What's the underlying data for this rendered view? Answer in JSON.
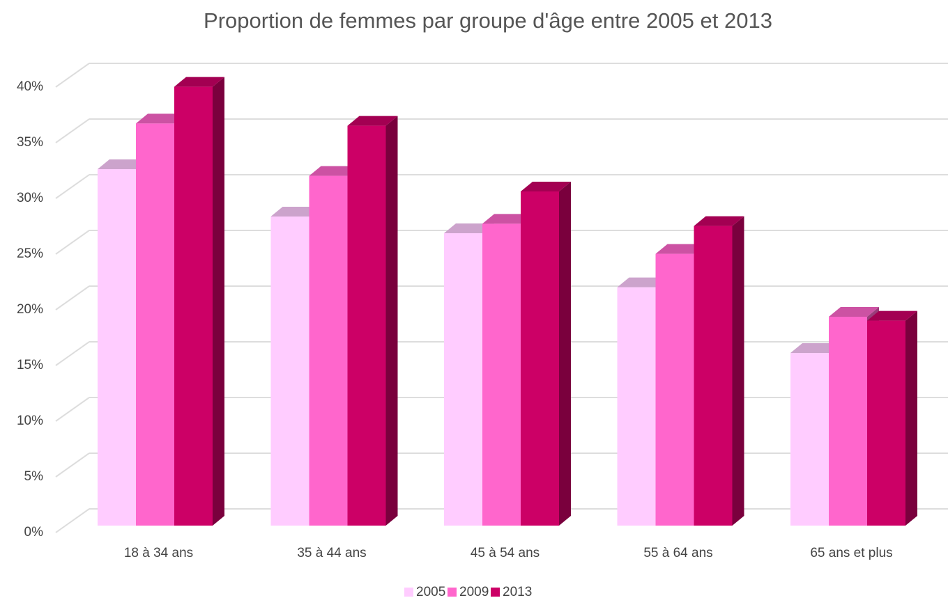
{
  "chart_data": {
    "type": "bar3d",
    "title": "Proportion de femmes par groupe d'âge entre 2005 et 2013",
    "categories": [
      "18 à 34 ans",
      "35 à 44 ans",
      "45 à 54 ans",
      "55 à 64 ans",
      "65 ans et plus"
    ],
    "series": [
      {
        "name": "2005",
        "color": "#ffccff",
        "values": [
          32.0,
          27.75,
          26.25,
          21.4,
          15.5
        ]
      },
      {
        "name": "2009",
        "color": "#ff66cc",
        "values": [
          36.1,
          31.4,
          27.1,
          24.4,
          18.75
        ]
      },
      {
        "name": "2013",
        "color": "#cc0066",
        "values": [
          39.4,
          35.9,
          30.0,
          26.9,
          18.4
        ]
      }
    ],
    "ylim": [
      0,
      40
    ],
    "yticks": [
      {
        "value": 0,
        "label": "0%"
      },
      {
        "value": 5,
        "label": "5%"
      },
      {
        "value": 10,
        "label": "10%"
      },
      {
        "value": 15,
        "label": "15%"
      },
      {
        "value": 20,
        "label": "20%"
      },
      {
        "value": 25,
        "label": "25%"
      },
      {
        "value": 30,
        "label": "30%"
      },
      {
        "value": 35,
        "label": "35%"
      },
      {
        "value": 40,
        "label": "40%"
      }
    ],
    "grid": true,
    "legend": "bottom"
  }
}
